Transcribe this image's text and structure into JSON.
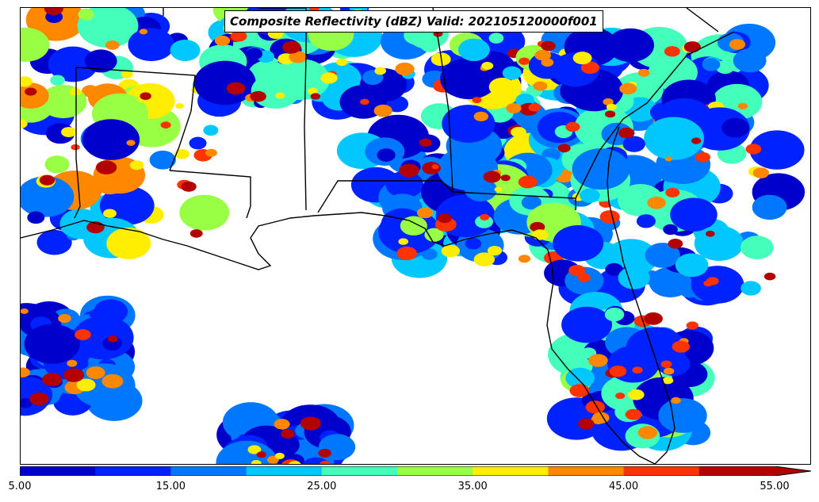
{
  "title": "Composite Reflectivity (dBZ) Valid: 202105120000f001",
  "colorbar": {
    "levels": [
      5,
      10,
      15,
      20,
      25,
      30,
      35,
      40,
      45,
      50,
      55
    ],
    "colors": [
      "#0000cd",
      "#0022ff",
      "#0077ff",
      "#00c8ff",
      "#44ffbb",
      "#99ff44",
      "#ffee00",
      "#ff8800",
      "#ff3300",
      "#b30000"
    ],
    "extend": "max",
    "tick_labels": [
      "5.00",
      "15.00",
      "25.00",
      "35.00",
      "45.00",
      "55.00"
    ]
  }
}
